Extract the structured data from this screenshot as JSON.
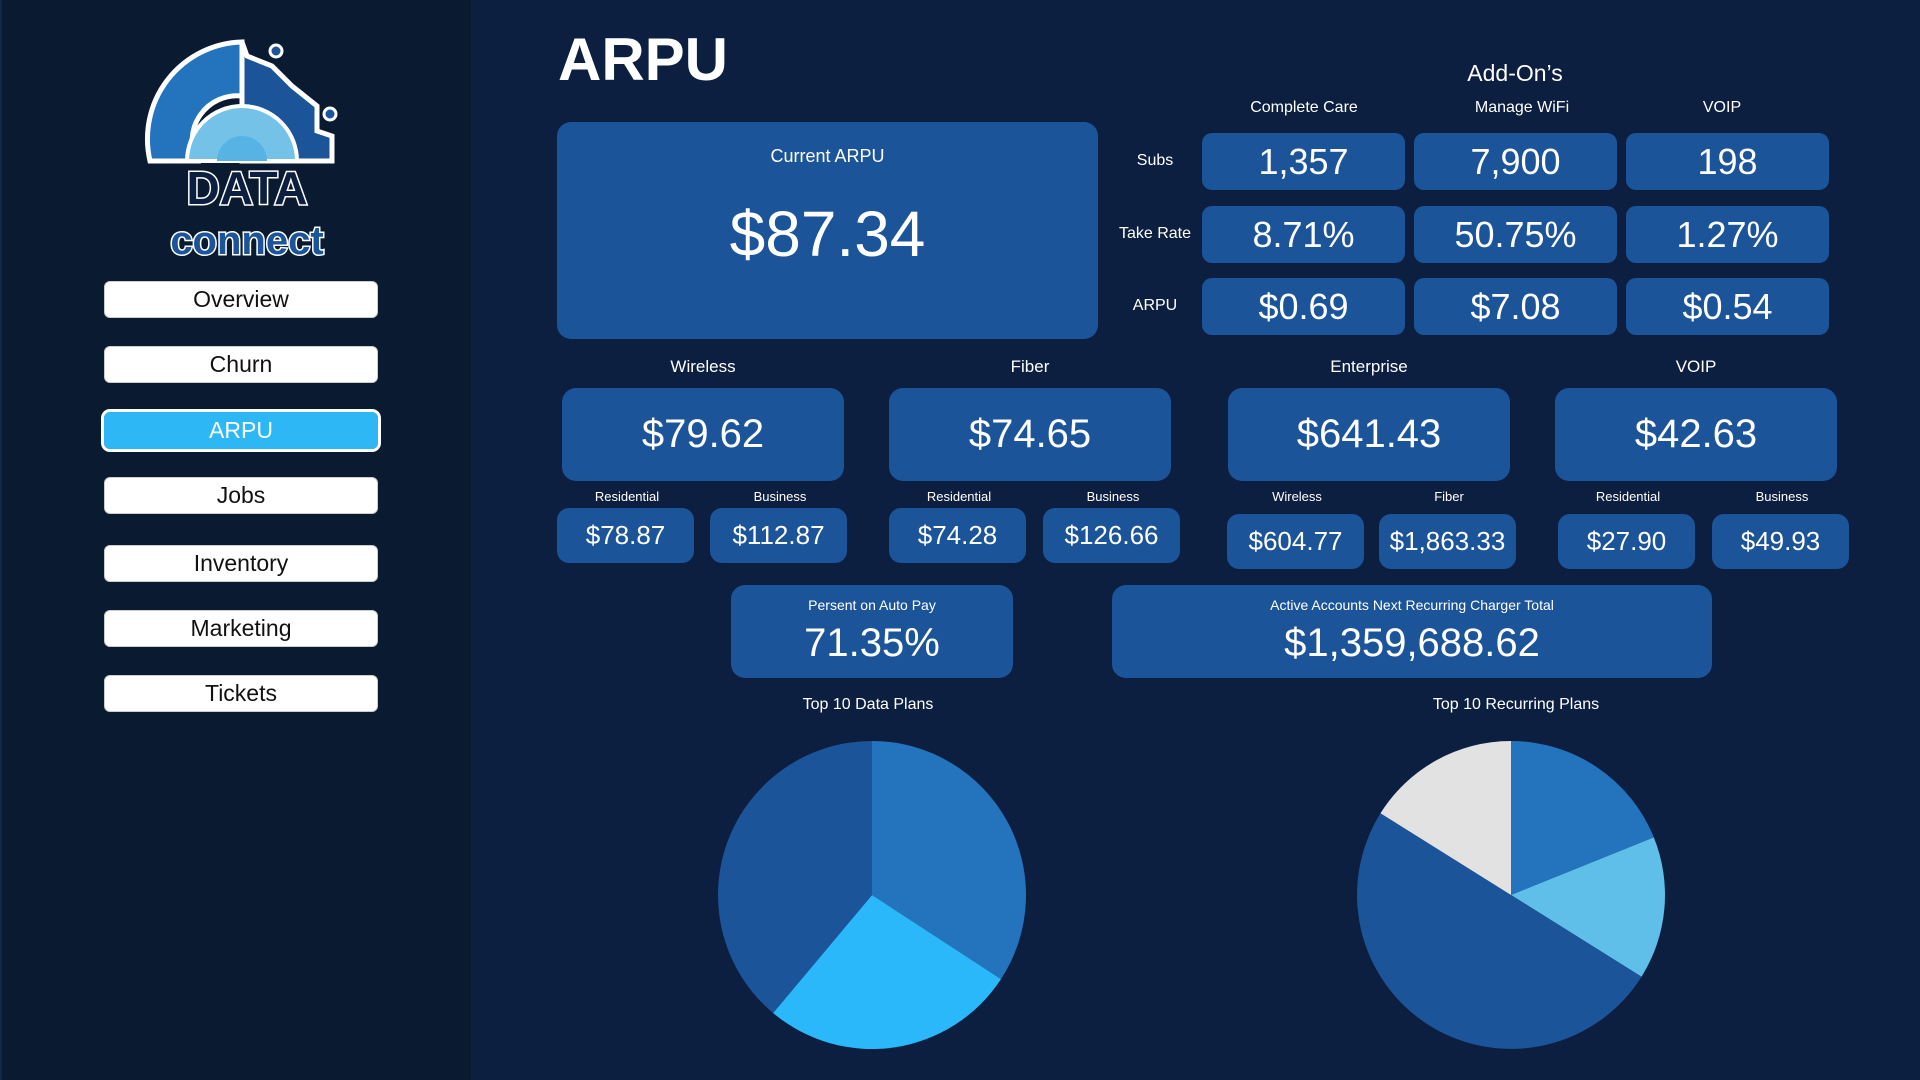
{
  "logo": {
    "line1": "DATA",
    "line2": "connect"
  },
  "nav": [
    {
      "label": "Overview"
    },
    {
      "label": "Churn"
    },
    {
      "label": "ARPU",
      "active": true
    },
    {
      "label": "Jobs"
    },
    {
      "label": "Inventory"
    },
    {
      "label": "Marketing"
    },
    {
      "label": "Tickets"
    }
  ],
  "page_title": "ARPU",
  "current_arpu": {
    "label": "Current ARPU",
    "value": "$87.34"
  },
  "addons": {
    "title": "Add-On’s",
    "columns": [
      "Complete Care",
      "Manage WiFi",
      "VOIP"
    ],
    "rows": [
      {
        "label": "Subs",
        "values": [
          "1,357",
          "7,900",
          "198"
        ]
      },
      {
        "label": "Take Rate",
        "values": [
          "8.71%",
          "50.75%",
          "1.27%"
        ]
      },
      {
        "label": "ARPU",
        "values": [
          "$0.69",
          "$7.08",
          "$0.54"
        ]
      }
    ]
  },
  "segments": [
    {
      "label": "Wireless",
      "value": "$79.62",
      "subs": [
        {
          "label": "Residential",
          "value": "$78.87"
        },
        {
          "label": "Business",
          "value": "$112.87"
        }
      ]
    },
    {
      "label": "Fiber",
      "value": "$74.65",
      "subs": [
        {
          "label": "Residential",
          "value": "$74.28"
        },
        {
          "label": "Business",
          "value": "$126.66"
        }
      ]
    },
    {
      "label": "Enterprise",
      "value": "$641.43",
      "subs": [
        {
          "label": "Wireless",
          "value": "$604.77"
        },
        {
          "label": "Fiber",
          "value": "$1,863.33"
        }
      ]
    },
    {
      "label": "VOIP",
      "value": "$42.63",
      "subs": [
        {
          "label": "Residential",
          "value": "$27.90"
        },
        {
          "label": "Business",
          "value": "$49.93"
        }
      ]
    }
  ],
  "autopay": {
    "label": "Persent on Auto Pay",
    "value": "71.35%"
  },
  "recurring_total": {
    "label": "Active Accounts Next Recurring Charger Total",
    "value": "$1,359,688.62"
  },
  "chart_data": [
    {
      "type": "pie",
      "title": "Top 10 Data Plans",
      "values": [
        34.2,
        26.9,
        38.9
      ],
      "colors": [
        "#2374bd",
        "#2bb8fb",
        "#1c5499"
      ]
    },
    {
      "type": "pie",
      "title": "Top 10 Recurring Plans",
      "values": [
        18.9,
        15.0,
        50.0,
        16.1
      ],
      "colors": [
        "#2374bd",
        "#5fbfe9",
        "#1c5499",
        "#e2e2e2"
      ]
    }
  ]
}
